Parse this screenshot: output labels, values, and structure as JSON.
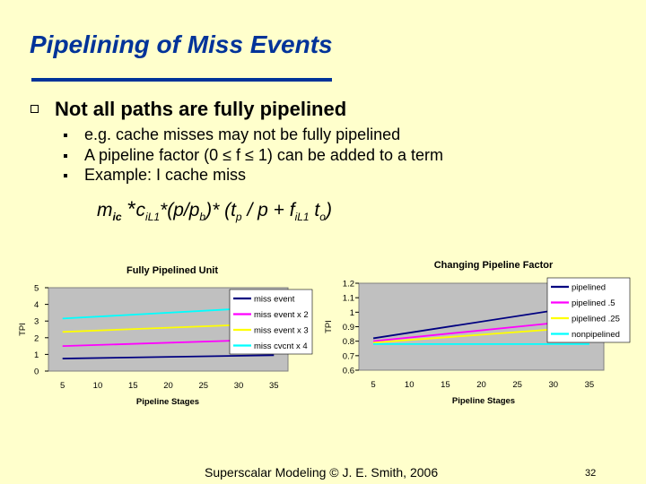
{
  "slide": {
    "title": "Pipelining of Miss Events",
    "bullet": "Not all paths are fully pipelined",
    "sub_bullets": [
      "e.g. cache misses may not be fully pipelined",
      "A pipeline factor (0 ≤ f ≤ 1) can be added to a term",
      "Example: I cache miss"
    ],
    "formula": {
      "m": "m",
      "m_sub": "ic",
      "star": " *",
      "c": "c",
      "c_sub": "iL1",
      "mid1": "*(p/p",
      "pb_sub": "b",
      "mid2": ")* (t",
      "tp_sub": "p",
      "mid3": " / p + f",
      "f_sub": "iL1",
      "mid4": " t",
      "to_sub": "o",
      "end": ")"
    },
    "footer": "Superscalar Modeling © J. E. Smith, 2006",
    "page_number": "32"
  },
  "chart_data": [
    {
      "type": "line",
      "title": "Fully Pipelined Unit",
      "xlabel": "Pipeline Stages",
      "ylabel": "TPI",
      "x": [
        5,
        35
      ],
      "xticks": [
        5,
        10,
        15,
        20,
        25,
        30,
        35
      ],
      "yticks": [
        0,
        1,
        2,
        3,
        4,
        5
      ],
      "ylim": [
        0,
        5
      ],
      "grid": false,
      "legend_position": "right",
      "series": [
        {
          "name": "miss event",
          "color": "#000080",
          "values": [
            0.75,
            0.95
          ]
        },
        {
          "name": "miss event x 2",
          "color": "#ff00ff",
          "values": [
            1.5,
            1.9
          ]
        },
        {
          "name": "miss event x 3",
          "color": "#ffff00",
          "values": [
            2.35,
            2.85
          ]
        },
        {
          "name": "miss cvcnt x 4",
          "color": "#00ffff",
          "values": [
            3.15,
            3.85
          ]
        }
      ]
    },
    {
      "type": "line",
      "title": "Changing Pipeline Factor",
      "xlabel": "Pipeline Stages",
      "ylabel": "TPI",
      "x": [
        5,
        35
      ],
      "xticks": [
        5,
        10,
        15,
        20,
        25,
        30,
        35
      ],
      "yticks": [
        0.6,
        0.7,
        0.8,
        0.9,
        1,
        1.1,
        1.2
      ],
      "ylim": [
        0.6,
        1.2
      ],
      "grid": false,
      "legend_position": "right",
      "series": [
        {
          "name": "pipelined",
          "color": "#000080",
          "values": [
            0.82,
            1.05
          ]
        },
        {
          "name": "pipelined .5",
          "color": "#ff00ff",
          "values": [
            0.8,
            0.95
          ]
        },
        {
          "name": "pipelined .25",
          "color": "#ffff00",
          "values": [
            0.79,
            0.9
          ]
        },
        {
          "name": "nonpipelined",
          "color": "#00ffff",
          "values": [
            0.78,
            0.78
          ]
        }
      ]
    }
  ]
}
